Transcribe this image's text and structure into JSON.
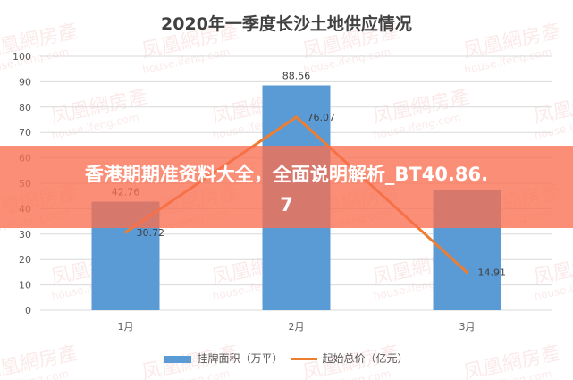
{
  "chart_data": {
    "type": "bar+line",
    "title": "2020年一季度长沙土地供应情况",
    "categories": [
      "1月",
      "2月",
      "3月"
    ],
    "series": [
      {
        "name": "挂牌面积（万平）",
        "type": "bar",
        "color": "#5b9bd5",
        "values": [
          42.76,
          88.56,
          47.3
        ],
        "labels": [
          "42.76",
          "88.56",
          ""
        ]
      },
      {
        "name": "起始总价（亿元）",
        "type": "line",
        "color": "#ed7d31",
        "values": [
          30.72,
          76.07,
          14.91
        ],
        "labels": [
          "30.72",
          "76.07",
          "14.91"
        ]
      }
    ],
    "ylim": [
      0,
      100
    ],
    "yticks": [
      "0",
      "10",
      "20",
      "30",
      "40",
      "50",
      "60",
      "70",
      "80",
      "90",
      "100"
    ],
    "grid": true,
    "legend": "bottom"
  },
  "banner": {
    "line1": "香港期期准资料大全，全面说明解析_BT40.86.",
    "line2": "7"
  },
  "watermark": "凤凰網房產 house.ifeng.com"
}
